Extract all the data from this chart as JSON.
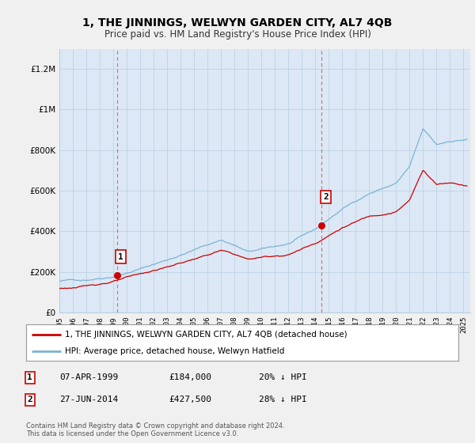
{
  "title": "1, THE JINNINGS, WELWYN GARDEN CITY, AL7 4QB",
  "subtitle": "Price paid vs. HM Land Registry's House Price Index (HPI)",
  "ylabel_ticks": [
    "£0",
    "£200K",
    "£400K",
    "£600K",
    "£800K",
    "£1M",
    "£1.2M"
  ],
  "ytick_values": [
    0,
    200000,
    400000,
    600000,
    800000,
    1000000,
    1200000
  ],
  "ylim": [
    0,
    1300000
  ],
  "xlim_start": 1995.0,
  "xlim_end": 2025.5,
  "sale1_x": 1999.27,
  "sale1_y": 184000,
  "sale1_label": "1",
  "sale2_x": 2014.48,
  "sale2_y": 427500,
  "sale2_label": "2",
  "sale_color": "#cc0000",
  "hpi_color": "#7ab3d4",
  "dashed_color": "#dd6666",
  "background_color": "#f0f0f0",
  "plot_bg_color": "#dce8f5",
  "grid_color": "#b8cfe0",
  "legend_line1": "1, THE JINNINGS, WELWYN GARDEN CITY, AL7 4QB (detached house)",
  "legend_line2": "HPI: Average price, detached house, Welwyn Hatfield",
  "table_row1": [
    "1",
    "07-APR-1999",
    "£184,000",
    "20% ↓ HPI"
  ],
  "table_row2": [
    "2",
    "27-JUN-2014",
    "£427,500",
    "28% ↓ HPI"
  ],
  "footer": "Contains HM Land Registry data © Crown copyright and database right 2024.\nThis data is licensed under the Open Government Licence v3.0."
}
